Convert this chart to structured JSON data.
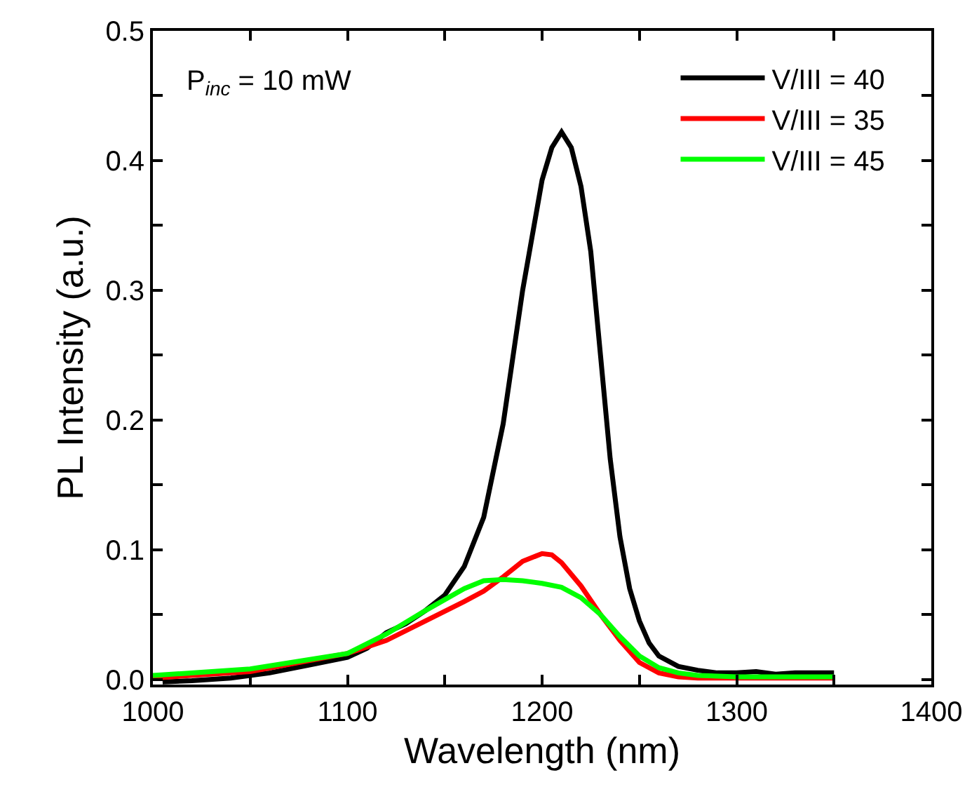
{
  "chart_data": {
    "type": "line",
    "xlabel": "Wavelength (nm)",
    "ylabel": "PL Intensity (a.u.)",
    "annotations": [
      "P$_{inc}$ = 10 mW"
    ],
    "xlim": [
      1000,
      1400
    ],
    "ylim": [
      -0.004,
      0.5
    ],
    "xticks": [
      1000,
      {
        "value": 1050,
        "label": null
      },
      1100,
      {
        "value": 1150,
        "label": null
      },
      1200,
      {
        "value": 1250,
        "label": null
      },
      1300,
      {
        "value": 1350,
        "label": null
      },
      1400
    ],
    "yticks": [
      {
        "value": 0,
        "label": "0.0"
      },
      {
        "value": 0.05,
        "label": null
      },
      0.1,
      {
        "value": 0.15,
        "label": null
      },
      0.2,
      {
        "value": 0.25,
        "label": null
      },
      0.3,
      {
        "value": 0.35,
        "label": null
      },
      0.4,
      {
        "value": 0.45,
        "label": null
      },
      0.5
    ],
    "legend": "top right",
    "marker": "none",
    "line_style": "solid",
    "series": [
      {
        "name": "V/III = 40",
        "color": "#000000",
        "x": [
          1005,
          1020,
          1040,
          1060,
          1080,
          1100,
          1110,
          1120,
          1130,
          1140,
          1150,
          1160,
          1170,
          1180,
          1190,
          1200,
          1205,
          1210,
          1215,
          1220,
          1225,
          1230,
          1235,
          1240,
          1245,
          1250,
          1255,
          1260,
          1270,
          1280,
          1290,
          1300,
          1310,
          1320,
          1330,
          1340,
          1350
        ],
        "values": [
          -0.002,
          -0.001,
          0.001,
          0.005,
          0.011,
          0.017,
          0.024,
          0.036,
          0.043,
          0.053,
          0.065,
          0.087,
          0.125,
          0.197,
          0.3,
          0.385,
          0.41,
          0.422,
          0.41,
          0.38,
          0.33,
          0.25,
          0.17,
          0.11,
          0.07,
          0.045,
          0.028,
          0.018,
          0.01,
          0.007,
          0.005,
          0.005,
          0.006,
          0.004,
          0.005,
          0.005,
          0.005
        ]
      },
      {
        "name": "V/III = 35",
        "color": "#ff0000",
        "x": [
          1000,
          1050,
          1100,
          1120,
          1140,
          1160,
          1170,
          1180,
          1190,
          1200,
          1205,
          1210,
          1220,
          1230,
          1240,
          1250,
          1260,
          1270,
          1280,
          1300,
          1350
        ],
        "values": [
          0.001,
          0.006,
          0.02,
          0.03,
          0.045,
          0.06,
          0.068,
          0.079,
          0.091,
          0.097,
          0.096,
          0.09,
          0.072,
          0.05,
          0.03,
          0.013,
          0.005,
          0.002,
          0.001,
          0.001,
          0.001
        ]
      },
      {
        "name": "V/III = 45",
        "color": "#00ff00",
        "x": [
          1000,
          1050,
          1100,
          1120,
          1140,
          1160,
          1170,
          1180,
          1190,
          1200,
          1210,
          1220,
          1230,
          1240,
          1250,
          1260,
          1270,
          1280,
          1300,
          1350
        ],
        "values": [
          0.003,
          0.008,
          0.02,
          0.035,
          0.053,
          0.07,
          0.076,
          0.077,
          0.076,
          0.074,
          0.071,
          0.063,
          0.05,
          0.033,
          0.018,
          0.009,
          0.005,
          0.003,
          0.002,
          0.002
        ]
      }
    ]
  }
}
